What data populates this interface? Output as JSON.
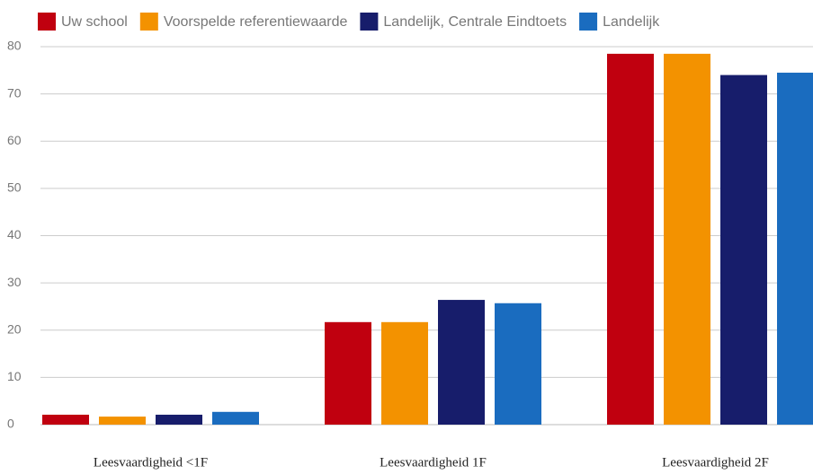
{
  "chart_data": {
    "type": "bar",
    "categories": [
      "Leesvaardigheid <1F",
      "Leesvaardigheid 1F",
      "Leesvaardigheid 2F"
    ],
    "series": [
      {
        "name": "Uw school",
        "color": "#c0000f",
        "values": [
          2.1,
          21.7,
          78.5
        ]
      },
      {
        "name": "Voorspelde referentiewaarde",
        "color": "#f39200",
        "values": [
          1.7,
          21.7,
          78.5
        ]
      },
      {
        "name": "Landelijk, Centrale Eindtoets",
        "color": "#171d6b",
        "values": [
          2.1,
          26.4,
          74
        ]
      },
      {
        "name": "Landelijk",
        "color": "#1a6cbf",
        "values": [
          2.7,
          25.7,
          74.5
        ]
      }
    ],
    "ylim": [
      0,
      80
    ],
    "yticks": [
      0,
      10,
      20,
      30,
      40,
      50,
      60,
      70,
      80
    ],
    "grid": true,
    "legend": "top"
  }
}
